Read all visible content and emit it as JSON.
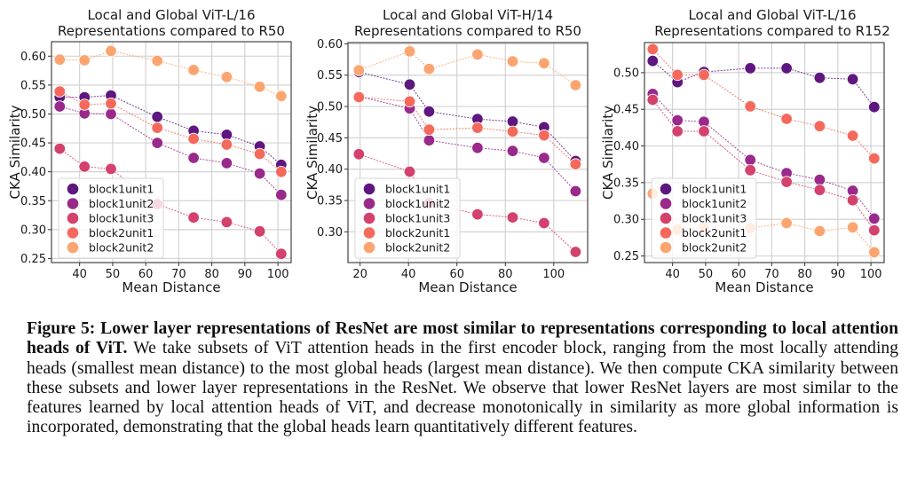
{
  "chart_data": [
    {
      "type": "line",
      "title": "Local and Global ViT-L/16\nRepresentations compared to R50",
      "xlabel": "Mean Distance",
      "ylabel": "CKA Similarity",
      "xlim": [
        31.5,
        104
      ],
      "ylim": [
        0.243,
        0.625
      ],
      "xticks": [
        40,
        50,
        60,
        70,
        80,
        90,
        100
      ],
      "yticks": [
        0.25,
        0.3,
        0.35,
        0.4,
        0.45,
        0.5,
        0.55,
        0.6
      ],
      "ytick_format": 2,
      "grid": true,
      "legend": "lower-left",
      "x": [
        34,
        41.5,
        49.5,
        63.5,
        74.5,
        84.5,
        94.5,
        101
      ],
      "series": [
        {
          "name": "block1unit1",
          "color": "#5d177f",
          "values": [
            0.529,
            0.529,
            0.532,
            0.495,
            0.471,
            0.464,
            0.444,
            0.412
          ]
        },
        {
          "name": "block1unit2",
          "color": "#992a8b",
          "values": [
            0.513,
            0.501,
            0.5,
            0.45,
            0.424,
            0.415,
            0.397,
            0.36
          ]
        },
        {
          "name": "block1unit3",
          "color": "#d3416c",
          "values": [
            0.44,
            0.409,
            0.405,
            0.344,
            0.321,
            0.313,
            0.297,
            0.258
          ]
        },
        {
          "name": "block2unit1",
          "color": "#f5695c",
          "values": [
            0.539,
            0.516,
            0.518,
            0.476,
            0.457,
            0.447,
            0.431,
            0.4
          ]
        },
        {
          "name": "block2unit2",
          "color": "#fca570",
          "values": [
            0.594,
            0.593,
            0.609,
            0.592,
            0.576,
            0.564,
            0.547,
            0.531
          ]
        }
      ]
    },
    {
      "type": "line",
      "title": "Local and Global ViT-H/14\nRepresentations compared to R50",
      "xlabel": "Mean Distance",
      "ylabel": "CKA Similarity",
      "xlim": [
        15,
        114
      ],
      "ylim": [
        0.251,
        0.602
      ],
      "xticks": [
        20,
        40,
        60,
        80,
        100
      ],
      "yticks": [
        0.3,
        0.35,
        0.4,
        0.45,
        0.5,
        0.55,
        0.6
      ],
      "ytick_format": 2,
      "grid": true,
      "legend": "lower-left",
      "x": [
        19.5,
        40.5,
        48.5,
        68.5,
        83,
        96,
        109
      ],
      "series": [
        {
          "name": "block1unit1",
          "color": "#5d177f",
          "values": [
            0.555,
            0.535,
            0.492,
            0.48,
            0.476,
            0.467,
            0.413
          ]
        },
        {
          "name": "block1unit2",
          "color": "#992a8b",
          "values": [
            0.516,
            0.497,
            0.446,
            0.434,
            0.429,
            0.418,
            0.365
          ]
        },
        {
          "name": "block1unit3",
          "color": "#d3416c",
          "values": [
            0.424,
            0.396,
            0.346,
            0.328,
            0.323,
            0.314,
            0.268
          ]
        },
        {
          "name": "block2unit1",
          "color": "#f5695c",
          "values": [
            0.515,
            0.508,
            0.463,
            0.466,
            0.46,
            0.454,
            0.408
          ]
        },
        {
          "name": "block2unit2",
          "color": "#fca570",
          "values": [
            0.558,
            0.588,
            0.56,
            0.583,
            0.572,
            0.569,
            0.534
          ]
        }
      ]
    },
    {
      "type": "line",
      "title": "Local and Global ViT-L/16\nRepresentations compared to R152",
      "xlabel": "Mean Distance",
      "ylabel": "CKA Similarity",
      "xlim": [
        31.5,
        104
      ],
      "ylim": [
        0.241,
        0.541
      ],
      "xticks": [
        40,
        50,
        60,
        70,
        80,
        90,
        100
      ],
      "yticks": [
        0.25,
        0.3,
        0.35,
        0.4,
        0.45,
        0.5
      ],
      "ytick_format": 2,
      "grid": true,
      "legend": "lower-left",
      "x": [
        34,
        41.5,
        49.5,
        63.5,
        74.5,
        84.5,
        94.5,
        101
      ],
      "series": [
        {
          "name": "block1unit1",
          "color": "#5d177f",
          "values": [
            0.516,
            0.487,
            0.501,
            0.506,
            0.506,
            0.493,
            0.491,
            0.453
          ]
        },
        {
          "name": "block1unit2",
          "color": "#992a8b",
          "values": [
            0.471,
            0.435,
            0.433,
            0.381,
            0.363,
            0.354,
            0.339,
            0.301
          ]
        },
        {
          "name": "block1unit3",
          "color": "#d3416c",
          "values": [
            0.463,
            0.42,
            0.42,
            0.367,
            0.351,
            0.34,
            0.326,
            0.285
          ]
        },
        {
          "name": "block2unit1",
          "color": "#f5695c",
          "values": [
            0.532,
            0.497,
            0.497,
            0.454,
            0.437,
            0.427,
            0.414,
            0.383
          ]
        },
        {
          "name": "block2unit2",
          "color": "#fca570",
          "values": [
            0.335,
            0.286,
            0.29,
            0.288,
            0.295,
            0.284,
            0.289,
            0.255
          ]
        }
      ]
    }
  ],
  "caption": {
    "bold": "Figure 5: Lower layer representations of ResNet are most similar to representations corresponding to local attention heads of ViT.",
    "text": " We take subsets of ViT attention heads in the first encoder block, ranging from the most locally attending heads (smallest mean distance) to the most global heads (largest mean distance). We then compute CKA similarity between these subsets and lower layer representations in the ResNet. We observe that lower ResNet layers are most similar to the features learned by local attention heads of ViT, and decrease monotonically in similarity as more global information is incorporated, demonstrating that the global heads learn quantitatively different features."
  }
}
